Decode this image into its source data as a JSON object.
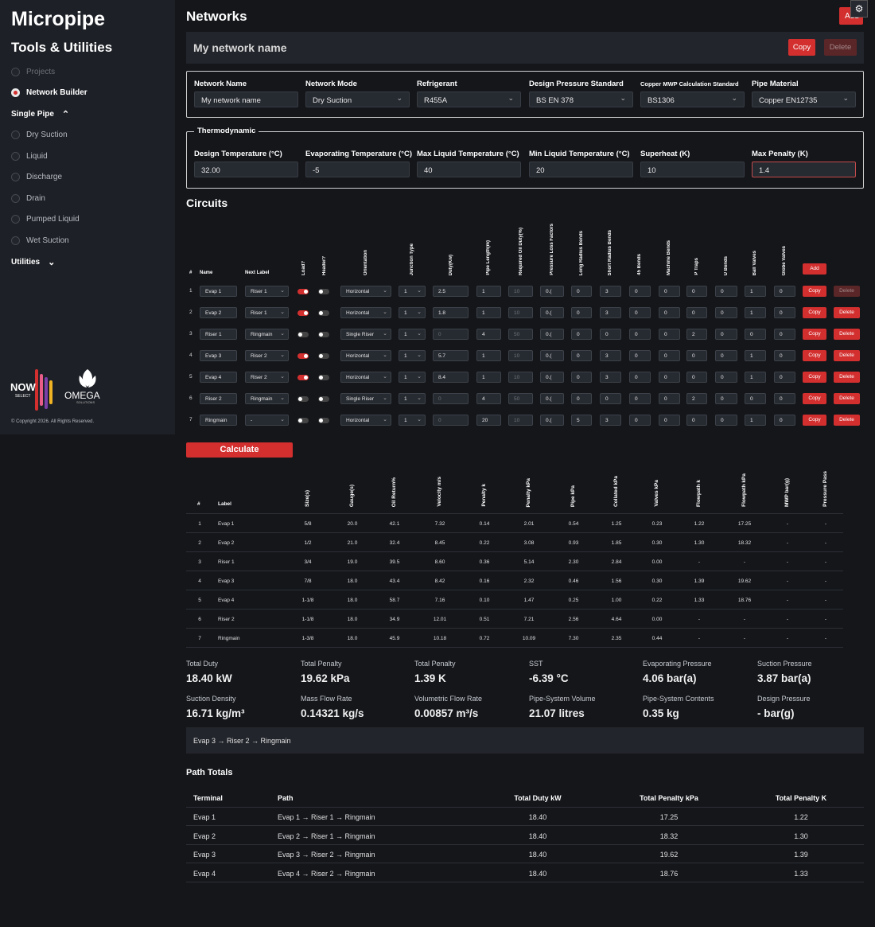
{
  "sidebar": {
    "brand": "Micropipe",
    "subtitle": "Tools & Utilities",
    "items": [
      {
        "label": "Projects",
        "state": "dim"
      },
      {
        "label": "Network Builder",
        "state": "active"
      }
    ],
    "single_pipe_label": "Single Pipe",
    "single_pipe_items": [
      "Dry Suction",
      "Liquid",
      "Discharge",
      "Drain",
      "Pumped Liquid",
      "Wet Suction"
    ],
    "utilities_label": "Utilities",
    "logo_now_top": "NOW",
    "logo_now_bottom": "SELECT",
    "logo_omega": "OMEGA",
    "logo_omega_sub": "SOLUTIONS",
    "copyright": "© Copyright 2026. All Rights Reserved."
  },
  "header": {
    "title": "Networks",
    "add_label": "Add",
    "settings_icon": "gear-icon"
  },
  "network_bar": {
    "name": "My network name",
    "copy_label": "Copy",
    "delete_label": "Delete"
  },
  "network_form": {
    "fields": [
      {
        "label": "Network Name",
        "value": "My network name",
        "type": "input"
      },
      {
        "label": "Network Mode",
        "value": "Dry Suction",
        "type": "select"
      },
      {
        "label": "Refrigerant",
        "value": "R455A",
        "type": "select"
      },
      {
        "label": "Design Pressure Standard",
        "value": "BS EN 378",
        "type": "select"
      },
      {
        "label": "Copper MWP Calculation Standard",
        "value": "BS1306",
        "type": "select"
      },
      {
        "label": "Pipe Material",
        "value": "Copper EN12735",
        "type": "select"
      }
    ]
  },
  "thermodynamic": {
    "legend": "Thermodynamic",
    "fields": [
      {
        "label": "Design Temperature (°C)",
        "value": "32.00"
      },
      {
        "label": "Evaporating Temperature (°C)",
        "value": "-5"
      },
      {
        "label": "Max Liquid Temperature (°C)",
        "value": "40"
      },
      {
        "label": "Min Liquid Temperature (°C)",
        "value": "20"
      },
      {
        "label": "Superheat (K)",
        "value": "10"
      },
      {
        "label": "Max Penalty (K)",
        "value": "1.4"
      }
    ]
  },
  "circuits": {
    "title": "Circuits",
    "headers": {
      "num": "#",
      "name": "Name",
      "next": "Next Label",
      "load": "Load?",
      "header": "Header?",
      "orientation": "Orientation",
      "junction": "Junction Type",
      "duty": "Duty(Kw)",
      "length": "Pipe Length(m)",
      "oil": "Required Oil Duty(%)",
      "plf": "Pressure Loss Factors",
      "lrb": "Long Radius Bends",
      "srb": "Short Radius Bends",
      "b45": "45 Bends",
      "mb": "Machine Bends",
      "pt": "P Traps",
      "ub": "U Bends",
      "bv": "Ball Valves",
      "gv": "Globe Valves"
    },
    "add_label": "Add",
    "copy_label": "Copy",
    "delete_label": "Delete",
    "rows": [
      {
        "num": "1",
        "name": "Evap 1",
        "next": "Riser 1",
        "load": true,
        "header": false,
        "orientation": "Horizontal",
        "junction": "1",
        "duty": "2.5",
        "length": "1",
        "oil": "10",
        "plf": "0.(",
        "lrb": "0",
        "srb": "3",
        "b45": "0",
        "mb": "0",
        "pt": "0",
        "ub": "0",
        "bv": "1",
        "gv": "0",
        "delete_disabled": true
      },
      {
        "num": "2",
        "name": "Evap 2",
        "next": "Riser 1",
        "load": true,
        "header": false,
        "orientation": "Horizontal",
        "junction": "1",
        "duty": "1.8",
        "length": "1",
        "oil": "10",
        "plf": "0.(",
        "lrb": "0",
        "srb": "3",
        "b45": "0",
        "mb": "0",
        "pt": "0",
        "ub": "0",
        "bv": "1",
        "gv": "0",
        "delete_disabled": false
      },
      {
        "num": "3",
        "name": "Riser 1",
        "next": "Ringmain",
        "load": false,
        "header": false,
        "orientation": "Single Riser",
        "junction": "1",
        "duty": "0",
        "length": "4",
        "oil": "50",
        "plf": "0.(",
        "lrb": "0",
        "srb": "0",
        "b45": "0",
        "mb": "0",
        "pt": "2",
        "ub": "0",
        "bv": "0",
        "gv": "0",
        "delete_disabled": false
      },
      {
        "num": "4",
        "name": "Evap 3",
        "next": "Riser 2",
        "load": true,
        "header": false,
        "orientation": "Horizontal",
        "junction": "1",
        "duty": "5.7",
        "length": "1",
        "oil": "10",
        "plf": "0.(",
        "lrb": "0",
        "srb": "3",
        "b45": "0",
        "mb": "0",
        "pt": "0",
        "ub": "0",
        "bv": "1",
        "gv": "0",
        "delete_disabled": false
      },
      {
        "num": "5",
        "name": "Evap 4",
        "next": "Riser 2",
        "load": true,
        "header": false,
        "orientation": "Horizontal",
        "junction": "1",
        "duty": "8.4",
        "length": "1",
        "oil": "10",
        "plf": "0.(",
        "lrb": "0",
        "srb": "3",
        "b45": "0",
        "mb": "0",
        "pt": "0",
        "ub": "0",
        "bv": "1",
        "gv": "0",
        "delete_disabled": false
      },
      {
        "num": "6",
        "name": "Riser 2",
        "next": "Ringmain",
        "load": false,
        "header": false,
        "orientation": "Single Riser",
        "junction": "1",
        "duty": "0",
        "length": "4",
        "oil": "50",
        "plf": "0.(",
        "lrb": "0",
        "srb": "0",
        "b45": "0",
        "mb": "0",
        "pt": "2",
        "ub": "0",
        "bv": "0",
        "gv": "0",
        "delete_disabled": false
      },
      {
        "num": "7",
        "name": "Ringmain",
        "next": "-",
        "load": false,
        "header": false,
        "orientation": "Horizontal",
        "junction": "1",
        "duty": "0",
        "length": "20",
        "oil": "10",
        "plf": "0.(",
        "lrb": "5",
        "srb": "3",
        "b45": "0",
        "mb": "0",
        "pt": "0",
        "ub": "0",
        "bv": "1",
        "gv": "0",
        "delete_disabled": false
      }
    ]
  },
  "calculate_label": "Calculate",
  "results": {
    "headers": [
      "#",
      "Label",
      "Size(s)",
      "Gauge(s)",
      "Oil Return%",
      "Velocity m/s",
      "Penalty k",
      "Penalty kPa",
      "Pipe kPa",
      "Collated kPa",
      "Valves kPa",
      "Flowpath k",
      "Flowpath kPa",
      "MWP bar(g)",
      "Pressure Pass"
    ],
    "rows": [
      [
        "1",
        "Evap 1",
        "5/8",
        "20.0",
        "42.1",
        "7.32",
        "0.14",
        "2.01",
        "0.54",
        "1.25",
        "0.23",
        "1.22",
        "17.25",
        "-",
        "-"
      ],
      [
        "2",
        "Evap 2",
        "1/2",
        "21.0",
        "32.4",
        "8.45",
        "0.22",
        "3.08",
        "0.93",
        "1.85",
        "0.30",
        "1.30",
        "18.32",
        "-",
        "-"
      ],
      [
        "3",
        "Riser 1",
        "3/4",
        "19.0",
        "39.5",
        "8.60",
        "0.36",
        "5.14",
        "2.30",
        "2.84",
        "0.00",
        "-",
        "-",
        "-",
        "-"
      ],
      [
        "4",
        "Evap 3",
        "7/8",
        "18.0",
        "43.4",
        "8.42",
        "0.16",
        "2.32",
        "0.46",
        "1.56",
        "0.30",
        "1.39",
        "19.62",
        "-",
        "-"
      ],
      [
        "5",
        "Evap 4",
        "1-1/8",
        "18.0",
        "58.7",
        "7.16",
        "0.10",
        "1.47",
        "0.25",
        "1.00",
        "0.22",
        "1.33",
        "18.76",
        "-",
        "-"
      ],
      [
        "6",
        "Riser 2",
        "1-1/8",
        "18.0",
        "34.9",
        "12.01",
        "0.51",
        "7.21",
        "2.56",
        "4.64",
        "0.00",
        "-",
        "-",
        "-",
        "-"
      ],
      [
        "7",
        "Ringmain",
        "1-3/8",
        "18.0",
        "45.9",
        "10.18",
        "0.72",
        "10.09",
        "7.30",
        "2.35",
        "0.44",
        "-",
        "-",
        "-",
        "-"
      ]
    ]
  },
  "summary": [
    {
      "label": "Total Duty",
      "value": "18.40 kW"
    },
    {
      "label": "Total Penalty",
      "value": "19.62 kPa"
    },
    {
      "label": "Total Penalty",
      "value": "1.39 K"
    },
    {
      "label": "SST",
      "value": "-6.39 °C"
    },
    {
      "label": "Evaporating Pressure",
      "value": "4.06 bar(a)"
    },
    {
      "label": "Suction Pressure",
      "value": "3.87 bar(a)"
    },
    {
      "label": "Suction Density",
      "value": "16.71 kg/m³"
    },
    {
      "label": "Mass Flow Rate",
      "value": "0.14321 kg/s"
    },
    {
      "label": "Volumetric Flow Rate",
      "value": "0.00857 m³/s"
    },
    {
      "label": "Pipe-System Volume",
      "value": "21.07 litres"
    },
    {
      "label": "Pipe-System Contents",
      "value": "0.35 kg"
    },
    {
      "label": "Design Pressure",
      "value": "- bar(g)"
    }
  ],
  "critical_path": "Evap 3 → Riser 2 → Ringmain",
  "path_totals": {
    "title": "Path Totals",
    "headers": [
      "Terminal",
      "Path",
      "Total Duty kW",
      "Total Penalty kPa",
      "Total Penalty K"
    ],
    "rows": [
      [
        "Evap 1",
        "Evap 1 → Riser 1 → Ringmain",
        "18.40",
        "17.25",
        "1.22"
      ],
      [
        "Evap 2",
        "Evap 2 → Riser 1 → Ringmain",
        "18.40",
        "18.32",
        "1.30"
      ],
      [
        "Evap 3",
        "Evap 3 → Riser 2 → Ringmain",
        "18.40",
        "19.62",
        "1.39"
      ],
      [
        "Evap 4",
        "Evap 4 → Riser 2 → Ringmain",
        "18.40",
        "18.76",
        "1.33"
      ]
    ]
  },
  "colors": {
    "accent": "#d32f2f",
    "background": "#14161a",
    "sidebar": "#1d2026",
    "panel": "#22252b"
  }
}
